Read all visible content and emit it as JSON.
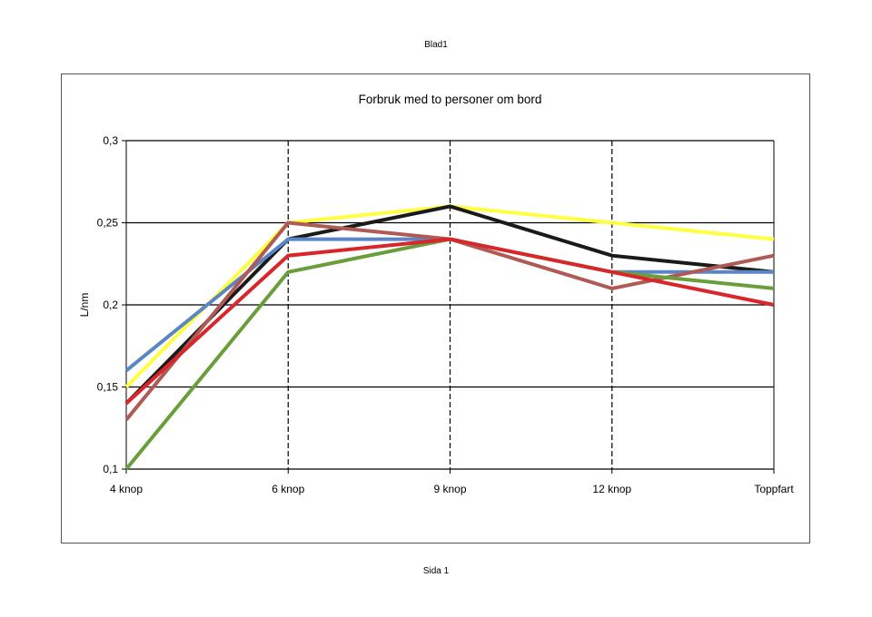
{
  "page": {
    "header": "Blad1",
    "footer": "Sida 1"
  },
  "chart_data": {
    "type": "line",
    "title": "Forbruk med to personer om bord",
    "xlabel": "",
    "ylabel": "L/nm",
    "categories": [
      "4 knop",
      "6 knop",
      "9 knop",
      "12 knop",
      "Toppfart"
    ],
    "ylim": [
      0.1,
      0.3
    ],
    "yticks": [
      0.1,
      0.15,
      0.2,
      0.25,
      0.3
    ],
    "ytick_labels": [
      "0,1",
      "0,15",
      "0,2",
      "0,25",
      "0,3"
    ],
    "grid": "horizontal solid, vertical dashed",
    "legend": "none",
    "series": [
      {
        "color": "#ffff40",
        "values": [
          0.15,
          0.25,
          0.26,
          0.25,
          0.24
        ]
      },
      {
        "color": "#1a1a1a",
        "values": [
          0.14,
          0.24,
          0.26,
          0.23,
          0.22
        ]
      },
      {
        "color": "#5b86c6",
        "values": [
          0.16,
          0.24,
          0.24,
          0.22,
          0.22
        ]
      },
      {
        "color": "#b05a56",
        "values": [
          0.13,
          0.25,
          0.24,
          0.21,
          0.23
        ]
      },
      {
        "color": "#6a9e3a",
        "values": [
          0.1,
          0.22,
          0.24,
          0.22,
          0.21
        ]
      },
      {
        "color": "#d9262a",
        "values": [
          0.14,
          0.23,
          0.24,
          0.22,
          0.2
        ]
      }
    ]
  }
}
